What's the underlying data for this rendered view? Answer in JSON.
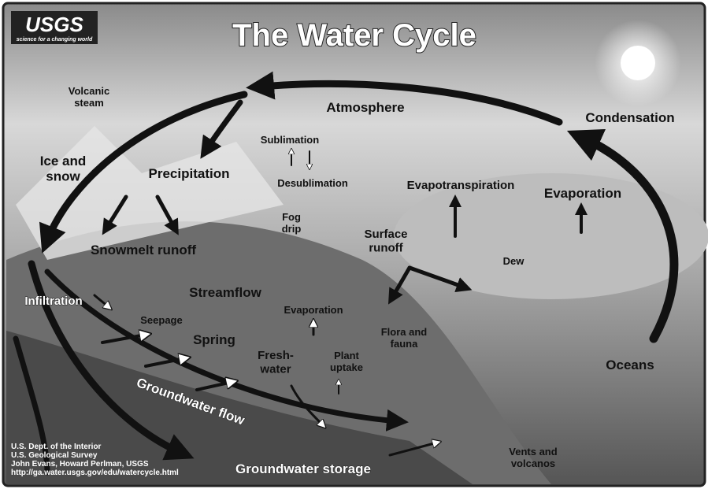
{
  "header": {
    "logo": "USGS",
    "tagline": "science for a changing world",
    "title": "The Water Cycle"
  },
  "labels": [
    {
      "lines": [
        "Volcanic",
        "steam"
      ]
    },
    {
      "lines": [
        "Atmosphere"
      ]
    },
    {
      "lines": [
        "Condensation"
      ]
    },
    {
      "lines": [
        "Sublimation"
      ]
    },
    {
      "lines": [
        "Desublimation"
      ]
    },
    {
      "lines": [
        "Ice and",
        "snow"
      ]
    },
    {
      "lines": [
        "Precipitation"
      ]
    },
    {
      "lines": [
        "Evapotranspiration"
      ]
    },
    {
      "lines": [
        "Evaporation"
      ]
    },
    {
      "lines": [
        "Fog",
        "drip"
      ]
    },
    {
      "lines": [
        "Snowmelt runoff"
      ]
    },
    {
      "lines": [
        "Surface",
        "runoff"
      ]
    },
    {
      "lines": [
        "Dew"
      ]
    },
    {
      "lines": [
        "Infiltration"
      ]
    },
    {
      "lines": [
        "Streamflow"
      ]
    },
    {
      "lines": [
        "Evaporation"
      ]
    },
    {
      "lines": [
        "Seepage"
      ]
    },
    {
      "lines": [
        "Flora and",
        "fauna"
      ]
    },
    {
      "lines": [
        "Spring"
      ]
    },
    {
      "lines": [
        "Fresh-",
        "water"
      ]
    },
    {
      "lines": [
        "Plant",
        "uptake"
      ]
    },
    {
      "lines": [
        "Oceans"
      ]
    },
    {
      "lines": [
        "Groundwater flow"
      ]
    },
    {
      "lines": [
        "Groundwater storage"
      ]
    },
    {
      "lines": [
        "Vents and",
        "volcanos"
      ]
    }
  ],
  "credits": [
    "U.S. Dept. of the Interior",
    "U.S. Geological Survey",
    "John Evans, Howard Perlman, USGS",
    "http://ga.water.usgs.gov/edu/watercycle.html"
  ]
}
